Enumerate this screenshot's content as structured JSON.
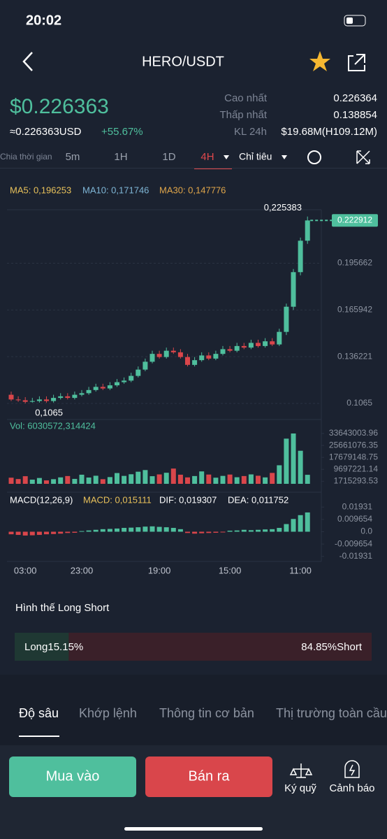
{
  "status": {
    "time": "20:02"
  },
  "header": {
    "pair": "HERO/USDT"
  },
  "ticker": {
    "price": "$0.226363",
    "usd": "≈0.226363USD",
    "change": "+55.67%",
    "stats": [
      [
        "Cao nhất",
        "0.226364"
      ],
      [
        "Thấp nhất",
        "0.138854"
      ],
      [
        "KL 24h",
        "$19.68M(H109.12M)"
      ]
    ]
  },
  "timeframes": {
    "label": "Chia thời gian",
    "items": [
      "5m",
      "1H",
      "1D",
      "4H"
    ],
    "indicator": "Chỉ tiêu"
  },
  "chart_data": [
    {
      "type": "candlestick",
      "legend": [
        "MA5: 0,196253",
        "MA10: 0,171746",
        "MA30: 0,147776"
      ],
      "high_label": "0,225383",
      "low_label": "0,1065",
      "last_price_label": "0.222912",
      "categories": [
        null,
        null,
        "03:00",
        null,
        null,
        null,
        null,
        null,
        null,
        null,
        "23:00",
        null,
        null,
        null,
        null,
        null,
        null,
        null,
        null,
        null,
        null,
        "19:00",
        null,
        null,
        null,
        null,
        null,
        null,
        null,
        null,
        null,
        "15:00",
        null,
        null,
        null,
        null,
        null,
        null,
        null,
        null,
        null,
        "11:00",
        null
      ],
      "open": [
        0.112,
        0.109,
        0.1085,
        0.1075,
        0.108,
        0.109,
        0.108,
        0.11,
        0.111,
        0.11,
        0.112,
        0.113,
        0.115,
        0.117,
        0.116,
        0.118,
        0.12,
        0.121,
        0.124,
        0.128,
        0.133,
        0.138,
        0.136,
        0.14,
        0.139,
        0.136,
        0.131,
        0.134,
        0.137,
        0.135,
        0.138,
        0.141,
        0.14,
        0.143,
        0.142,
        0.145,
        0.143,
        0.146,
        0.144,
        0.152,
        0.168,
        0.19,
        0.21
      ],
      "high": [
        0.114,
        0.111,
        0.1105,
        0.11,
        0.111,
        0.111,
        0.112,
        0.113,
        0.113,
        0.114,
        0.115,
        0.117,
        0.119,
        0.119,
        0.12,
        0.122,
        0.123,
        0.126,
        0.13,
        0.135,
        0.14,
        0.14,
        0.142,
        0.142,
        0.141,
        0.138,
        0.136,
        0.139,
        0.139,
        0.14,
        0.143,
        0.143,
        0.145,
        0.145,
        0.147,
        0.147,
        0.148,
        0.148,
        0.154,
        0.17,
        0.192,
        0.212,
        0.225383
      ],
      "low": [
        0.108,
        0.1075,
        0.1065,
        0.107,
        0.107,
        0.107,
        0.107,
        0.109,
        0.109,
        0.109,
        0.111,
        0.112,
        0.114,
        0.115,
        0.115,
        0.117,
        0.119,
        0.12,
        0.123,
        0.127,
        0.132,
        0.135,
        0.135,
        0.138,
        0.135,
        0.13,
        0.13,
        0.133,
        0.134,
        0.134,
        0.137,
        0.139,
        0.139,
        0.141,
        0.141,
        0.142,
        0.142,
        0.143,
        0.143,
        0.15,
        0.166,
        0.188,
        0.208
      ],
      "close": [
        0.109,
        0.1085,
        0.1075,
        0.108,
        0.109,
        0.108,
        0.11,
        0.111,
        0.11,
        0.112,
        0.113,
        0.115,
        0.117,
        0.116,
        0.118,
        0.12,
        0.121,
        0.124,
        0.128,
        0.133,
        0.138,
        0.136,
        0.14,
        0.139,
        0.136,
        0.131,
        0.134,
        0.137,
        0.135,
        0.138,
        0.141,
        0.14,
        0.143,
        0.142,
        0.145,
        0.143,
        0.146,
        0.144,
        0.152,
        0.168,
        0.19,
        0.21,
        0.2229
      ],
      "up_color": "#4fbf9d",
      "down_color": "#d9464b",
      "ylim": [
        0.1007,
        0.2297
      ],
      "yticks": [
        0.195662,
        0.165942,
        0.136221,
        0.1065
      ]
    },
    {
      "type": "bar",
      "legend": "Vol: 6030572,314424",
      "values": [
        4100000,
        3200000,
        5100000,
        2800000,
        3900000,
        2300000,
        3100000,
        4300000,
        5200000,
        3300000,
        6100000,
        4200000,
        5400000,
        3100000,
        4500000,
        7200000,
        5300000,
        6400000,
        8100000,
        9200000,
        5100000,
        6300000,
        7400000,
        10200000,
        6100000,
        4300000,
        5200000,
        8300000,
        6200000,
        4100000,
        5300000,
        6200000,
        4400000,
        5200000,
        6300000,
        5400000,
        4300000,
        7300000,
        12400000,
        30200000,
        33643003.96,
        22100000,
        6030572.314424
      ],
      "ylim": [
        0,
        33643003.96
      ],
      "yticks": [
        33643003.96,
        25661076.35,
        17679148.75,
        9697221.14,
        1715293.53
      ]
    },
    {
      "type": "bar",
      "legend": [
        "MACD(12,26,9)",
        "MACD: 0,015111",
        "DIF: 0,019307",
        "DEA: 0,011752"
      ],
      "values": [
        -0.002,
        -0.0025,
        -0.003,
        -0.0028,
        -0.0025,
        -0.002,
        -0.0018,
        -0.0015,
        -0.001,
        -0.0008,
        0.0005,
        0.001,
        0.0015,
        0.002,
        0.0022,
        0.0025,
        0.003,
        0.0032,
        0.0035,
        0.004,
        0.0042,
        0.0038,
        0.0035,
        0.003,
        0.002,
        -0.001,
        -0.0015,
        -0.0012,
        -0.001,
        -0.0008,
        -0.0005,
        0.0008,
        0.001,
        0.0015,
        0.0012,
        0.0015,
        0.0018,
        0.002,
        0.003,
        0.006,
        0.01,
        0.013,
        0.015111
      ],
      "ylim": [
        -0.02,
        0.02
      ],
      "yticks": [
        0.01931,
        0.009654,
        {
          "value": 0,
          "label": "0.0"
        },
        -0.009654,
        -0.01931
      ]
    }
  ],
  "long_short": {
    "title": "Hình thế Long Short",
    "values": [
      15.15,
      84.85
    ],
    "value_labels": [
      "Long15.15%",
      "84.85%Short"
    ]
  },
  "tabs": [
    "Độ sâu",
    "Khớp lệnh",
    "Thông tin cơ bản",
    "Thị trường toàn cầu"
  ],
  "actions": {
    "buy": "Mua vào",
    "sell": "Bán ra",
    "margin": "Ký quỹ",
    "alert": "Cảnh báo"
  }
}
